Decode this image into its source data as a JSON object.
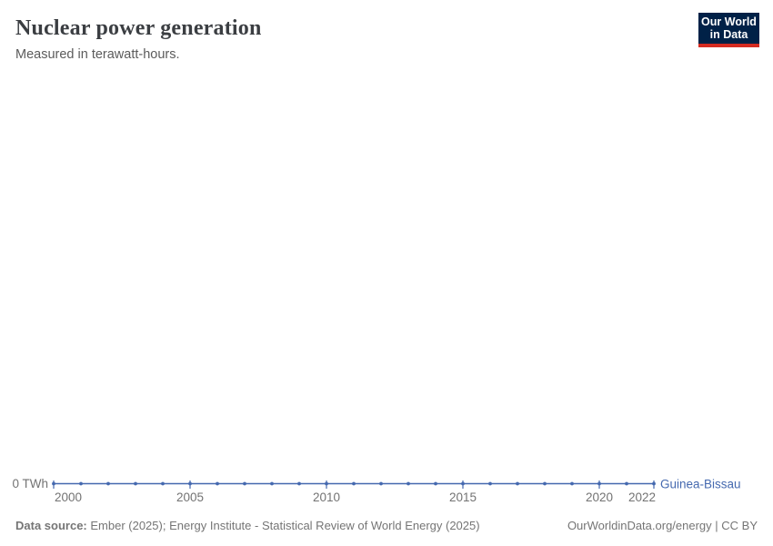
{
  "header": {
    "title": "Nuclear power generation",
    "subtitle": "Measured in terawatt-hours.",
    "logo": {
      "line1": "Our World",
      "line2": "in Data"
    }
  },
  "colors": {
    "series_line": "#4569af",
    "axis_text": "#737373",
    "logo_navy": "#002147",
    "logo_red": "#d42b21"
  },
  "chart_data": {
    "type": "line",
    "title": "Nuclear power generation",
    "subtitle": "Measured in terawatt-hours.",
    "xlabel": "",
    "ylabel": "TWh",
    "y_zero_label": "0 TWh",
    "grid": false,
    "legend_position": "end-of-line-label",
    "xlim": [
      2000,
      2022
    ],
    "ylim": [
      0,
      0
    ],
    "x": [
      2000,
      2001,
      2002,
      2003,
      2004,
      2005,
      2006,
      2007,
      2008,
      2009,
      2010,
      2011,
      2012,
      2013,
      2014,
      2015,
      2016,
      2017,
      2018,
      2019,
      2020,
      2021,
      2022
    ],
    "x_ticks": [
      2000,
      2005,
      2010,
      2015,
      2020,
      2022
    ],
    "series": [
      {
        "name": "Guinea-Bissau",
        "color": "#4569af",
        "values": [
          0,
          0,
          0,
          0,
          0,
          0,
          0,
          0,
          0,
          0,
          0,
          0,
          0,
          0,
          0,
          0,
          0,
          0,
          0,
          0,
          0,
          0,
          0
        ]
      }
    ]
  },
  "footer": {
    "source_label": "Data source:",
    "source_text": " Ember (2025); Energy Institute - Statistical Review of World Energy (2025)",
    "attribution": "OurWorldinData.org/energy | CC BY"
  }
}
